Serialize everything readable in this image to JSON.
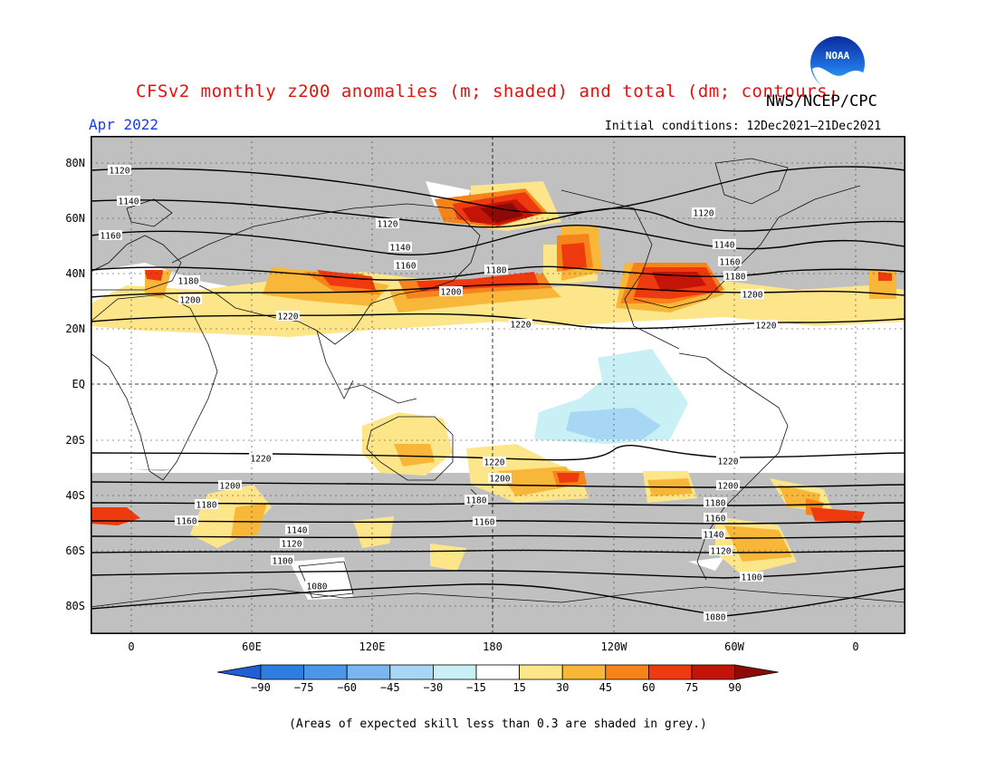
{
  "header": {
    "title": "CFSv2 monthly z200 anomalies (m; shaded) and total (dm; contours)",
    "agency": "NWS/NCEP/CPC",
    "month": "Apr 2022",
    "initial_conditions": "Initial conditions: 12Dec2021–21Dec2021",
    "logo_text": "NOAA"
  },
  "map": {
    "lat_labels": [
      "80N",
      "60N",
      "40N",
      "20N",
      "EQ",
      "20S",
      "40S",
      "60S",
      "80S"
    ],
    "lon_labels": [
      "0",
      "60E",
      "120E",
      "180",
      "120W",
      "60W",
      "0"
    ],
    "contour_labels": [
      "1120",
      "1140",
      "1160",
      "1180",
      "1200",
      "1220",
      "1220",
      "1200",
      "1180",
      "1160",
      "1140",
      "1120",
      "1100",
      "1080"
    ],
    "contour_label_placed": [
      {
        "t": "1120",
        "k": "a"
      },
      {
        "t": "1140",
        "k": "b"
      },
      {
        "t": "1160",
        "k": "c"
      },
      {
        "t": "1180",
        "k": "d"
      },
      {
        "t": "1200",
        "k": "e"
      },
      {
        "t": "1220",
        "k": "f"
      },
      {
        "t": "1120",
        "k": "g"
      },
      {
        "t": "1140",
        "k": "h"
      },
      {
        "t": "1160",
        "k": "i"
      },
      {
        "t": "1180",
        "k": "j"
      },
      {
        "t": "1200",
        "k": "k"
      },
      {
        "t": "1220",
        "k": "l"
      },
      {
        "t": "1120",
        "k": "m"
      },
      {
        "t": "1140",
        "k": "n"
      },
      {
        "t": "1160",
        "k": "o"
      },
      {
        "t": "1180",
        "k": "p"
      },
      {
        "t": "1200",
        "k": "q"
      },
      {
        "t": "1220",
        "k": "r"
      },
      {
        "t": "1220",
        "k": "s"
      },
      {
        "t": "1200",
        "k": "t"
      },
      {
        "t": "1180",
        "k": "u"
      },
      {
        "t": "1160",
        "k": "v"
      },
      {
        "t": "1140",
        "k": "w"
      },
      {
        "t": "1120",
        "k": "x"
      },
      {
        "t": "1100",
        "k": "y"
      },
      {
        "t": "1080",
        "k": "z"
      },
      {
        "t": "1220",
        "k": "A"
      },
      {
        "t": "1200",
        "k": "B"
      },
      {
        "t": "1180",
        "k": "C"
      },
      {
        "t": "1160",
        "k": "D"
      },
      {
        "t": "1220",
        "k": "E"
      },
      {
        "t": "1200",
        "k": "F"
      },
      {
        "t": "1180",
        "k": "G"
      },
      {
        "t": "1160",
        "k": "H"
      },
      {
        "t": "1140",
        "k": "I"
      },
      {
        "t": "1120",
        "k": "J"
      },
      {
        "t": "1100",
        "k": "K"
      },
      {
        "t": "1080",
        "k": "L"
      }
    ]
  },
  "colorbar": {
    "labels": [
      "−90",
      "−75",
      "−60",
      "−45",
      "−30",
      "−15",
      "15",
      "30",
      "45",
      "60",
      "75",
      "90"
    ],
    "colors": [
      "#1f5fd6",
      "#2e7de0",
      "#4a96e8",
      "#7bb6f0",
      "#a8d6f5",
      "#c8f0f5",
      "#ffffff",
      "#fde68a",
      "#f9b73a",
      "#f7841b",
      "#ef3a0f",
      "#c41408",
      "#8e0a06"
    ]
  },
  "footnote": "(Areas of expected skill less than 0.3 are shaded in grey.)"
}
